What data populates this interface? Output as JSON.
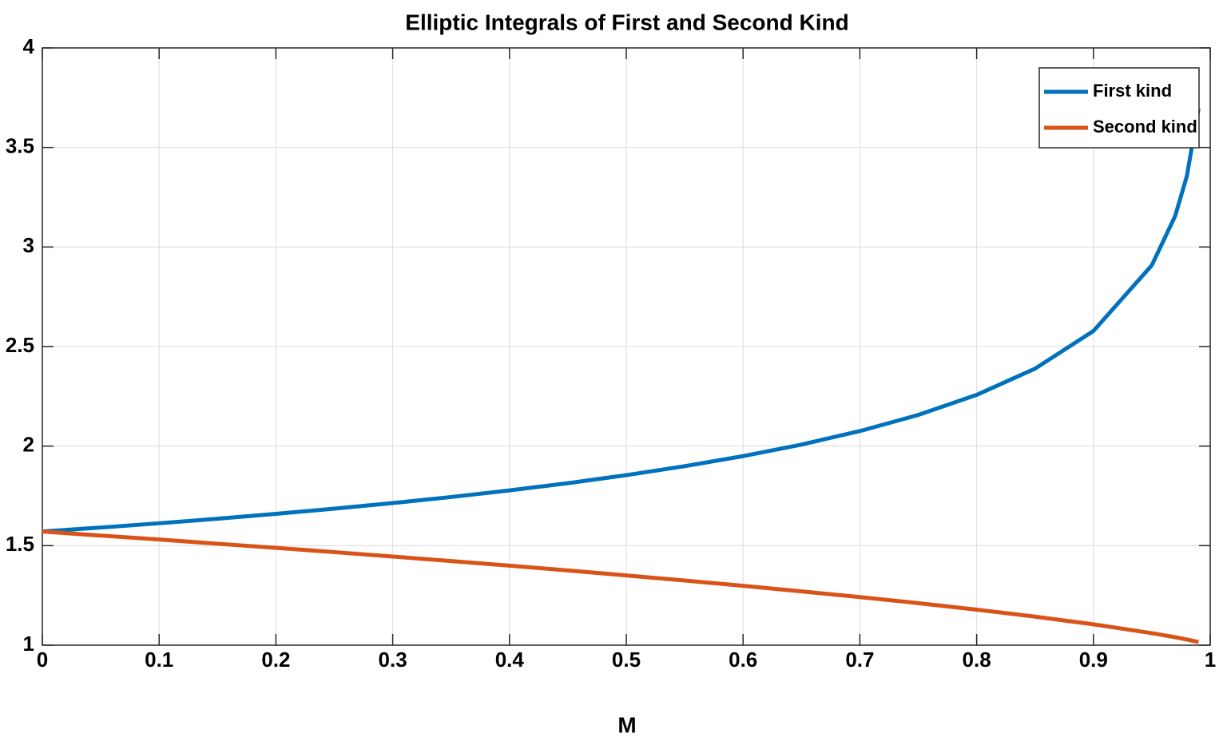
{
  "chart_data": {
    "type": "line",
    "title": "Elliptic Integrals of First and Second Kind",
    "x_label": "M",
    "x": [
      0,
      0.05,
      0.1,
      0.15,
      0.2,
      0.25,
      0.3,
      0.35,
      0.4,
      0.45,
      0.5,
      0.55,
      0.6,
      0.65,
      0.7,
      0.75,
      0.8,
      0.85,
      0.9,
      0.95,
      0.97,
      0.98,
      0.99
    ],
    "series": [
      {
        "name": "First kind",
        "color": "#0072BD",
        "values": [
          1.5708,
          1.591,
          1.6124,
          1.6352,
          1.6596,
          1.6858,
          1.7139,
          1.7442,
          1.7775,
          1.8138,
          1.8541,
          1.8991,
          1.9496,
          2.0076,
          2.0754,
          2.1565,
          2.2572,
          2.389,
          2.5781,
          2.9083,
          3.1559,
          3.3566,
          3.6956
        ]
      },
      {
        "name": "Second kind",
        "color": "#D95319",
        "values": [
          1.5708,
          1.5505,
          1.5308,
          1.5096,
          1.489,
          1.4675,
          1.4454,
          1.4226,
          1.3994,
          1.3753,
          1.3506,
          1.3247,
          1.2984,
          1.2703,
          1.2417,
          1.2111,
          1.1785,
          1.1434,
          1.1048,
          1.0605,
          1.0401,
          1.0286,
          1.016
        ]
      }
    ],
    "xlim": [
      0,
      1
    ],
    "xticks": [
      0,
      0.1,
      0.2,
      0.3,
      0.4,
      0.5,
      0.6,
      0.7,
      0.8,
      0.9,
      1
    ],
    "ylim": [
      1,
      4
    ],
    "yticks": [
      1,
      1.5,
      2,
      2.5,
      3,
      3.5,
      4
    ],
    "grid": true,
    "legend": "upper-right"
  }
}
